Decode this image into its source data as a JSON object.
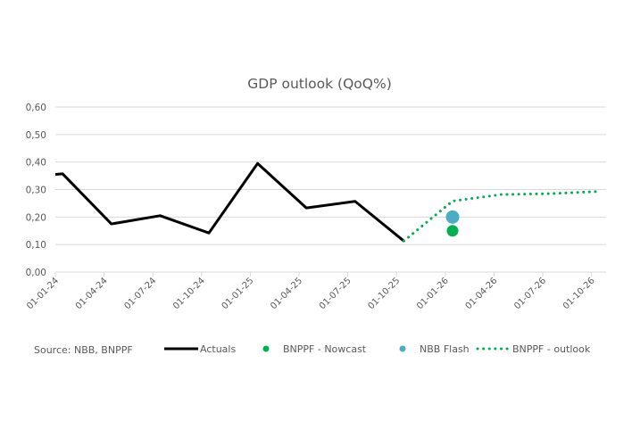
{
  "chart_data": {
    "type": "line",
    "title": "GDP outlook (QoQ%)",
    "xlabel": "",
    "ylabel": "",
    "ylim": [
      0,
      0.6
    ],
    "yticks": [
      0,
      0.1,
      0.2,
      0.3,
      0.4,
      0.5,
      0.6
    ],
    "ytick_labels": [
      "0,00",
      "0,10",
      "0,20",
      "0,30",
      "0,40",
      "0,50",
      "0,60"
    ],
    "x_unit": "quarters since 01-01-24",
    "xlim": [
      0,
      11.3
    ],
    "categories": [
      "01-01-24",
      "01-04-24",
      "01-07-24",
      "01-10-24",
      "01-01-25",
      "01-04-25",
      "01-07-25",
      "01-10-25",
      "01-01-26",
      "01-04-26",
      "01-07-26",
      "01-10-26"
    ],
    "grid": true,
    "legend_position": "bottom",
    "source_note": "Source: NBB, BNPPF",
    "series": [
      {
        "name": "Actuals",
        "style": "solid-line",
        "color": "#000000",
        "x": [
          0,
          0.15,
          1.15,
          2.15,
          3.15,
          4.15,
          5.15,
          6.15,
          7.15
        ],
        "values": [
          0.355,
          0.357,
          0.175,
          0.205,
          0.142,
          0.395,
          0.233,
          0.257,
          0.113
        ]
      },
      {
        "name": "BNPPF - Nowcast",
        "style": "marker",
        "color": "#00B050",
        "x": [
          8.15
        ],
        "values": [
          0.15
        ]
      },
      {
        "name": "NBB Flash",
        "style": "marker",
        "color": "#4BACC6",
        "x": [
          8.15
        ],
        "values": [
          0.2
        ]
      },
      {
        "name": "BNPPF - outlook",
        "style": "dotted-line",
        "color": "#00B050",
        "x": [
          7.15,
          8.15,
          9.15,
          10.15,
          11.15
        ],
        "values": [
          0.113,
          0.258,
          0.282,
          0.285,
          0.293
        ]
      }
    ]
  }
}
